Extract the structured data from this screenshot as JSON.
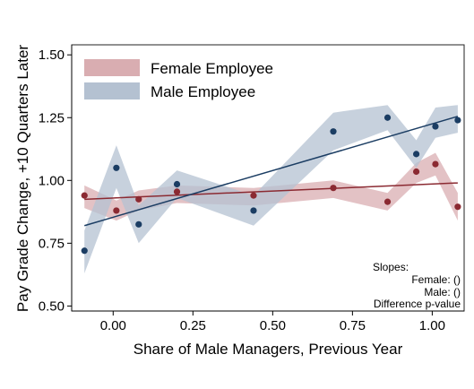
{
  "chart_data": {
    "type": "scatter",
    "xlabel": "Share of Male Managers, Previous Year",
    "ylabel": "Pay Grade Change, +10 Quarters Later",
    "xlim": [
      -0.13,
      1.1
    ],
    "ylim": [
      0.48,
      1.54
    ],
    "x_ticks": [
      0,
      0.25,
      0.5,
      0.75,
      1
    ],
    "x_tick_labels": [
      "0.00",
      "0.25",
      "0.50",
      "0.75",
      "1.00"
    ],
    "y_ticks": [
      0.5,
      0.75,
      1,
      1.25,
      1.5
    ],
    "y_tick_labels": [
      "0.50",
      "0.75",
      "1.00",
      "1.25",
      "1.50"
    ],
    "grid": false,
    "legend_position": "top-left",
    "colors": {
      "female": "#8b2a32",
      "female_band": "#d9adb1",
      "male": "#1b3d63",
      "male_band": "#b4c1d1"
    },
    "series": [
      {
        "name": "Female Employee",
        "points": [
          {
            "x": -0.09,
            "y": 0.94
          },
          {
            "x": 0.01,
            "y": 0.88
          },
          {
            "x": 0.08,
            "y": 0.925
          },
          {
            "x": 0.2,
            "y": 0.955
          },
          {
            "x": 0.44,
            "y": 0.94
          },
          {
            "x": 0.69,
            "y": 0.97
          },
          {
            "x": 0.86,
            "y": 0.915
          },
          {
            "x": 0.95,
            "y": 1.035
          },
          {
            "x": 1.01,
            "y": 1.065
          },
          {
            "x": 1.08,
            "y": 0.895
          }
        ],
        "band": [
          {
            "x": -0.09,
            "lo": 0.89,
            "hi": 0.98
          },
          {
            "x": 0.01,
            "lo": 0.84,
            "hi": 0.92
          },
          {
            "x": 0.08,
            "lo": 0.88,
            "hi": 0.96
          },
          {
            "x": 0.2,
            "lo": 0.91,
            "hi": 0.98
          },
          {
            "x": 0.44,
            "lo": 0.9,
            "hi": 0.97
          },
          {
            "x": 0.69,
            "lo": 0.93,
            "hi": 1.0
          },
          {
            "x": 0.86,
            "lo": 0.88,
            "hi": 0.95
          },
          {
            "x": 0.95,
            "lo": 0.99,
            "hi": 1.07
          },
          {
            "x": 1.01,
            "lo": 1.02,
            "hi": 1.11
          },
          {
            "x": 1.08,
            "lo": 0.84,
            "hi": 0.95
          }
        ],
        "fit": {
          "x": [
            -0.09,
            1.08
          ],
          "y": [
            0.925,
            0.99
          ]
        }
      },
      {
        "name": "Male Employee",
        "points": [
          {
            "x": -0.09,
            "y": 0.72
          },
          {
            "x": 0.01,
            "y": 1.05
          },
          {
            "x": 0.08,
            "y": 0.825
          },
          {
            "x": 0.2,
            "y": 0.985
          },
          {
            "x": 0.44,
            "y": 0.88
          },
          {
            "x": 0.69,
            "y": 1.195
          },
          {
            "x": 0.86,
            "y": 1.25
          },
          {
            "x": 0.95,
            "y": 1.105
          },
          {
            "x": 1.01,
            "y": 1.215
          },
          {
            "x": 1.08,
            "y": 1.24
          }
        ],
        "band": [
          {
            "x": -0.09,
            "lo": 0.63,
            "hi": 0.8
          },
          {
            "x": 0.01,
            "lo": 0.97,
            "hi": 1.14
          },
          {
            "x": 0.08,
            "lo": 0.75,
            "hi": 0.9
          },
          {
            "x": 0.2,
            "lo": 0.93,
            "hi": 1.04
          },
          {
            "x": 0.44,
            "lo": 0.82,
            "hi": 0.94
          },
          {
            "x": 0.69,
            "lo": 1.12,
            "hi": 1.27
          },
          {
            "x": 0.86,
            "lo": 1.2,
            "hi": 1.3
          },
          {
            "x": 0.95,
            "lo": 1.05,
            "hi": 1.16
          },
          {
            "x": 1.01,
            "lo": 1.17,
            "hi": 1.29
          },
          {
            "x": 1.08,
            "lo": 1.19,
            "hi": 1.3
          }
        ],
        "fit": {
          "x": [
            -0.09,
            1.08
          ],
          "y": [
            0.82,
            1.255
          ]
        }
      }
    ],
    "annotations": {
      "slopes_header": "Slopes:",
      "female_line": "Female: ()",
      "male_line": "Male: ()",
      "difference_line": "Difference p-value"
    }
  }
}
